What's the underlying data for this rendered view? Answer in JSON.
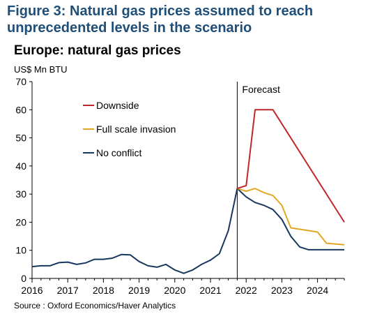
{
  "figure_title": "Figure 3: Natural gas prices assumed to reach unprecedented levels in the scenario",
  "source": "Source : Oxford Economics/Haver Analytics",
  "colors": {
    "title": "#1f4e79",
    "downside": "#c0272d",
    "full_scale_invasion": "#e0a820",
    "no_conflict": "#17375e",
    "axis": "#000000"
  },
  "chart_data": {
    "type": "line",
    "title": "Europe: natural gas prices",
    "ylabel": "US$ Mn BTU",
    "xlabel": "",
    "ylim": [
      0,
      70
    ],
    "xlim": [
      2016.0,
      2024.75
    ],
    "yticks": [
      0,
      10,
      20,
      30,
      40,
      50,
      60,
      70
    ],
    "xticks": [
      "2016",
      "2017",
      "2018",
      "2019",
      "2020",
      "2021",
      "2022",
      "2023",
      "2024"
    ],
    "grid": false,
    "legend_position": "top-left",
    "annotations": [
      {
        "text": "Forecast",
        "x": 2021.75
      }
    ],
    "series": [
      {
        "name": "Downside",
        "color_key": "downside",
        "points": [
          [
            2021.75,
            32.0
          ],
          [
            2022.0,
            33.0
          ],
          [
            2022.25,
            60.0
          ],
          [
            2022.5,
            60.0
          ],
          [
            2022.75,
            60.0
          ],
          [
            2024.75,
            20.0
          ]
        ]
      },
      {
        "name": "Full scale invasion",
        "color_key": "full_scale_invasion",
        "points": [
          [
            2021.75,
            32.0
          ],
          [
            2022.0,
            31.0
          ],
          [
            2022.25,
            32.0
          ],
          [
            2022.5,
            30.5
          ],
          [
            2022.75,
            29.5
          ],
          [
            2023.0,
            26.0
          ],
          [
            2023.25,
            18.0
          ],
          [
            2023.5,
            17.5
          ],
          [
            2023.75,
            17.0
          ],
          [
            2024.0,
            16.5
          ],
          [
            2024.25,
            12.5
          ],
          [
            2024.75,
            12.0
          ]
        ]
      },
      {
        "name": "No conflict",
        "color_key": "no_conflict",
        "points": [
          [
            2016.0,
            4.2
          ],
          [
            2016.25,
            4.5
          ],
          [
            2016.5,
            4.5
          ],
          [
            2016.75,
            5.6
          ],
          [
            2017.0,
            5.8
          ],
          [
            2017.25,
            5.0
          ],
          [
            2017.5,
            5.5
          ],
          [
            2017.75,
            6.8
          ],
          [
            2018.0,
            6.8
          ],
          [
            2018.25,
            7.2
          ],
          [
            2018.5,
            8.5
          ],
          [
            2018.75,
            8.4
          ],
          [
            2019.0,
            6.0
          ],
          [
            2019.25,
            4.5
          ],
          [
            2019.5,
            4.0
          ],
          [
            2019.75,
            5.0
          ],
          [
            2020.0,
            3.0
          ],
          [
            2020.25,
            1.8
          ],
          [
            2020.5,
            3.0
          ],
          [
            2020.75,
            5.0
          ],
          [
            2021.0,
            6.5
          ],
          [
            2021.25,
            8.8
          ],
          [
            2021.5,
            17.0
          ],
          [
            2021.75,
            32.0
          ],
          [
            2022.0,
            29.0
          ],
          [
            2022.25,
            27.0
          ],
          [
            2022.5,
            26.0
          ],
          [
            2022.75,
            24.5
          ],
          [
            2023.0,
            21.0
          ],
          [
            2023.25,
            15.0
          ],
          [
            2023.5,
            11.2
          ],
          [
            2023.75,
            10.2
          ],
          [
            2024.0,
            10.2
          ],
          [
            2024.25,
            10.2
          ],
          [
            2024.75,
            10.2
          ]
        ]
      }
    ]
  }
}
